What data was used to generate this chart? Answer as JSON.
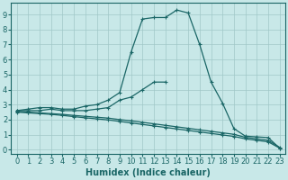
{
  "xlabel": "Humidex (Indice chaleur)",
  "ylabel": "",
  "bg_color": "#c8e8e8",
  "grid_color": "#a0c8c8",
  "line_color": "#1a6666",
  "xlim": [
    -0.5,
    23.5
  ],
  "ylim": [
    -0.3,
    9.8
  ],
  "xticks": [
    0,
    1,
    2,
    3,
    4,
    5,
    6,
    7,
    8,
    9,
    10,
    11,
    12,
    13,
    14,
    15,
    16,
    17,
    18,
    19,
    20,
    21,
    22,
    23
  ],
  "yticks": [
    0,
    1,
    2,
    3,
    4,
    5,
    6,
    7,
    8,
    9
  ],
  "line1_x": [
    0,
    1,
    2,
    3,
    4,
    5,
    6,
    7,
    8,
    9,
    10,
    11,
    12,
    13,
    14,
    15,
    16,
    17,
    18,
    19,
    20,
    21,
    22,
    23
  ],
  "line1_y": [
    2.6,
    2.7,
    2.8,
    2.8,
    2.7,
    2.7,
    2.9,
    3.0,
    3.3,
    3.8,
    6.5,
    8.7,
    8.8,
    8.8,
    9.3,
    9.1,
    7.0,
    4.5,
    3.1,
    1.4,
    0.9,
    0.85,
    0.8,
    0.1
  ],
  "line2_x": [
    0,
    1,
    2,
    3,
    4,
    5,
    6,
    7,
    8,
    9,
    10,
    11,
    12,
    13
  ],
  "line2_y": [
    2.6,
    2.6,
    2.6,
    2.7,
    2.6,
    2.6,
    2.6,
    2.7,
    2.8,
    3.3,
    3.5,
    4.0,
    4.5,
    4.5
  ],
  "line3_x": [
    0,
    1,
    2,
    3,
    4,
    5,
    6,
    7,
    8,
    9,
    10,
    11,
    12,
    13,
    14,
    15,
    16,
    17,
    18,
    19,
    20,
    21,
    22,
    23
  ],
  "line3_y": [
    2.55,
    2.5,
    2.45,
    2.4,
    2.35,
    2.28,
    2.22,
    2.16,
    2.1,
    2.0,
    1.92,
    1.82,
    1.72,
    1.62,
    1.52,
    1.42,
    1.32,
    1.22,
    1.12,
    1.02,
    0.82,
    0.72,
    0.62,
    0.15
  ],
  "line4_x": [
    0,
    1,
    2,
    3,
    4,
    5,
    6,
    7,
    8,
    9,
    10,
    11,
    12,
    13,
    14,
    15,
    16,
    17,
    18,
    19,
    20,
    21,
    22,
    23
  ],
  "line4_y": [
    2.5,
    2.45,
    2.4,
    2.35,
    2.28,
    2.2,
    2.12,
    2.05,
    1.98,
    1.88,
    1.78,
    1.68,
    1.58,
    1.48,
    1.38,
    1.28,
    1.18,
    1.08,
    0.98,
    0.88,
    0.72,
    0.62,
    0.52,
    0.1
  ],
  "marker": "+",
  "markersize": 3,
  "linewidth": 0.9,
  "xlabel_fontsize": 7,
  "tick_fontsize": 6
}
